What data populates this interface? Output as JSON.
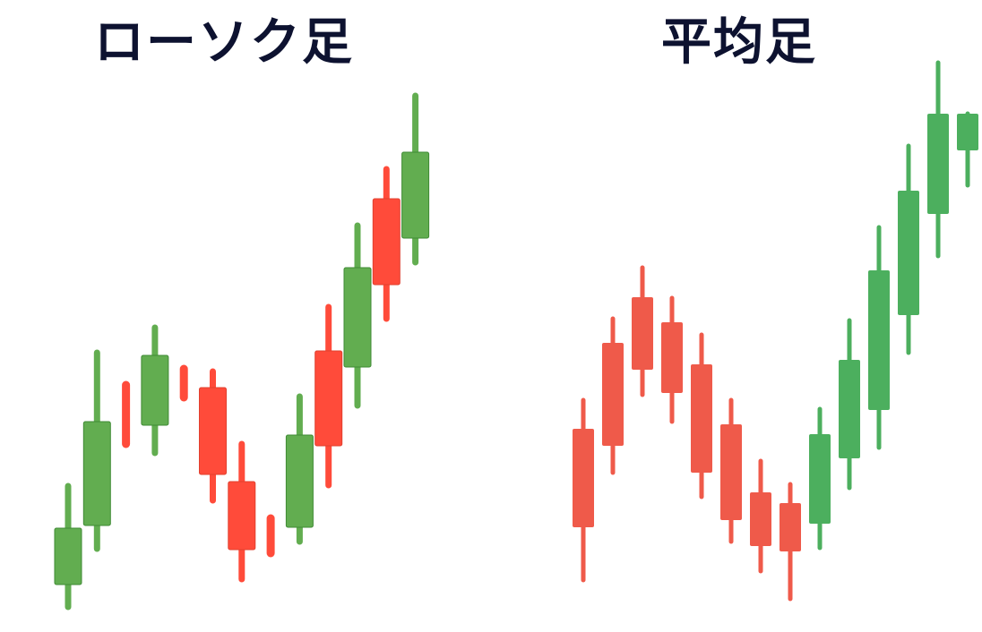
{
  "chart_data": [
    {
      "type": "candlestick",
      "title": "ローソク足",
      "colors": {
        "up": "#62ad50",
        "down": "#ff4b3a"
      },
      "axes_visible": false,
      "grid": false,
      "ylim": [
        0,
        140
      ],
      "candles": [
        {
          "o": 9.4,
          "h": 31.4,
          "l": 4.4,
          "c": 22
        },
        {
          "o": 22.6,
          "h": 61.2,
          "l": 17.4,
          "c": 45.8
        },
        {
          "o": 47.4,
          "h": 54,
          "l": 40.8,
          "c": 47.4,
          "dir": "down"
        },
        {
          "o": 45,
          "h": 66.8,
          "l": 38.8,
          "c": 60.6
        },
        {
          "o": 54.4,
          "h": 57.6,
          "l": 51.2,
          "c": 54.4,
          "dir": "down"
        },
        {
          "o": 53.4,
          "h": 57,
          "l": 28.2,
          "c": 34
        },
        {
          "o": 32.4,
          "h": 40.8,
          "l": 10.6,
          "c": 17.2
        },
        {
          "o": 20.3,
          "h": 24.2,
          "l": 16.4,
          "c": 20.3,
          "dir": "down"
        },
        {
          "o": 22.2,
          "h": 51.4,
          "l": 19,
          "c": 42.8
        },
        {
          "o": 61.6,
          "h": 71.4,
          "l": 31.6,
          "c": 40.4
        },
        {
          "o": 58,
          "h": 89.6,
          "l": 49.4,
          "c": 80.2
        },
        {
          "o": 95.6,
          "h": 102.2,
          "l": 68.8,
          "c": 76.4
        },
        {
          "o": 86.8,
          "h": 118.6,
          "l": 81.4,
          "c": 106
        }
      ]
    },
    {
      "type": "candlestick",
      "title": "平均足",
      "colors": {
        "up": "#4caf5e",
        "down": "#ef5a4a"
      },
      "axes_visible": false,
      "grid": false,
      "ylim": [
        0,
        140
      ],
      "candles": [
        {
          "o": 44.2,
          "h": 50.6,
          "l": 10.4,
          "c": 22.2
        },
        {
          "o": 63.4,
          "h": 68.8,
          "l": 34.4,
          "c": 40.4
        },
        {
          "o": 73.6,
          "h": 80.2,
          "l": 51.8,
          "c": 57.4
        },
        {
          "o": 68,
          "h": 73.4,
          "l": 45.8,
          "c": 52.2
        },
        {
          "o": 58.6,
          "h": 65.2,
          "l": 29,
          "c": 34.4
        },
        {
          "o": 45.2,
          "h": 50.6,
          "l": 19,
          "c": 23.8
        },
        {
          "o": 30,
          "h": 37,
          "l": 12.4,
          "c": 18
        },
        {
          "o": 27.6,
          "h": 31.8,
          "l": 6.2,
          "c": 16.8
        },
        {
          "o": 23,
          "h": 48.6,
          "l": 17.6,
          "c": 43
        },
        {
          "o": 37.6,
          "h": 68.4,
          "l": 31,
          "c": 59.6
        },
        {
          "o": 48.4,
          "h": 89.2,
          "l": 40,
          "c": 79.6
        },
        {
          "o": 69.6,
          "h": 107.4,
          "l": 61.2,
          "c": 97.4
        },
        {
          "o": 92.2,
          "h": 126,
          "l": 82.8,
          "c": 114.6
        },
        {
          "o": 106.4,
          "h": 114.6,
          "l": 98.6,
          "c": 114.6
        }
      ]
    }
  ]
}
